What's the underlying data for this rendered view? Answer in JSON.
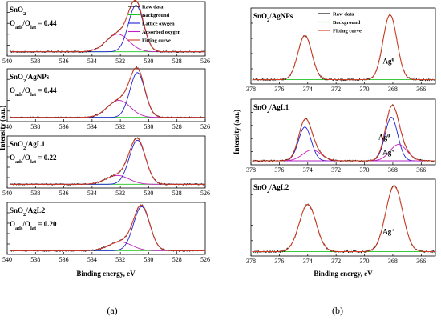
{
  "figure": {
    "caption_a": "(a)",
    "caption_b": "(b)"
  },
  "chart_data": [
    {
      "type": "line",
      "id": "a",
      "xlabel": "Binding energy, eV",
      "ylabel": "Intensity (a.u.)",
      "xlim": [
        540,
        526
      ],
      "x_ticks": [
        540,
        538,
        536,
        534,
        532,
        530,
        528,
        526
      ],
      "legend": {
        "placement": "top-right of first panel",
        "entries": [
          {
            "label": "Raw data",
            "color": "#000000"
          },
          {
            "label": "Background",
            "color": "#1fc31f"
          },
          {
            "label": "Lattice oxygen",
            "color": "#1f1fd6"
          },
          {
            "label": "Adsorbed oxygen",
            "color": "#c21fc2"
          },
          {
            "label": "Fitting curve",
            "color": "#d63a1f"
          }
        ]
      },
      "panels": [
        {
          "label": "SnO2",
          "ratio_label": "Oads/Olat = 0.44",
          "lattice": {
            "center": 530.9,
            "fwhm": 1.25,
            "height": 1.0
          },
          "adsorbed": {
            "center": 532.2,
            "fwhm": 1.9,
            "height": 0.38
          },
          "background": 0.04
        },
        {
          "label": "SnO2/AgNPs",
          "ratio_label": "Oads/Olat = 0.44",
          "lattice": {
            "center": 530.8,
            "fwhm": 1.25,
            "height": 1.0
          },
          "adsorbed": {
            "center": 532.1,
            "fwhm": 1.9,
            "height": 0.38
          },
          "background": 0.04
        },
        {
          "label": "SnO2/AgL1",
          "ratio_label": "Oads/Olat = 0.22",
          "lattice": {
            "center": 530.8,
            "fwhm": 1.35,
            "height": 1.0
          },
          "adsorbed": {
            "center": 532.2,
            "fwhm": 1.9,
            "height": 0.2
          },
          "background": 0.03
        },
        {
          "label": "SnO2/AgL2",
          "ratio_label": "Oads/Olat = 0.20",
          "lattice": {
            "center": 530.5,
            "fwhm": 1.35,
            "height": 1.0
          },
          "adsorbed": {
            "center": 532.0,
            "fwhm": 1.9,
            "height": 0.2
          },
          "background": 0.03
        }
      ]
    },
    {
      "type": "line",
      "id": "b",
      "xlabel": "Binding energy, eV",
      "ylabel": "Intensity (a.u.)",
      "xlim": [
        378,
        365
      ],
      "x_ticks": [
        378,
        376,
        374,
        372,
        370,
        368,
        366
      ],
      "legend": {
        "placement": "top of first panel",
        "entries": [
          {
            "label": "Raw data",
            "color": "#000000"
          },
          {
            "label": "Background",
            "color": "#1fc31f"
          },
          {
            "label": "Fitting curve",
            "color": "#d63a1f"
          }
        ]
      },
      "panels": [
        {
          "label": "SnO2/AgNPs",
          "peaks": [
            {
              "center": 374.2,
              "fwhm": 1.15,
              "height": 0.68
            },
            {
              "center": 368.2,
              "fwhm": 1.15,
              "height": 1.0
            }
          ],
          "components": [],
          "annotations": [
            {
              "text": "Ag",
              "sup": "0",
              "x": 368.3,
              "y": 0.28
            }
          ],
          "background": 0.03
        },
        {
          "label": "SnO2/AgL1",
          "peaks": [
            {
              "center": 374.2,
              "fwhm": 1.05,
              "height": 0.62
            },
            {
              "center": 368.1,
              "fwhm": 1.05,
              "height": 0.8
            },
            {
              "center": 373.7,
              "fwhm": 1.5,
              "height": 0.2
            },
            {
              "center": 367.6,
              "fwhm": 1.4,
              "height": 0.3
            }
          ],
          "components": [
            {
              "center": 374.2,
              "fwhm": 1.05,
              "height": 0.62,
              "color": "#1f1fd6"
            },
            {
              "center": 368.1,
              "fwhm": 1.05,
              "height": 0.8,
              "color": "#1f1fd6"
            },
            {
              "center": 373.7,
              "fwhm": 1.5,
              "height": 0.2,
              "color": "#c21fc2"
            },
            {
              "center": 367.6,
              "fwhm": 1.4,
              "height": 0.3,
              "color": "#c21fc2"
            }
          ],
          "annotations": [
            {
              "text": "Ag",
              "sup": "0",
              "x": 368.6,
              "y": 0.42
            },
            {
              "text": "Ag",
              "sup": "+",
              "x": 368.3,
              "y": 0.14
            }
          ],
          "background": 0.03
        },
        {
          "label": "SnO2/AgL2",
          "peaks": [
            {
              "center": 374.0,
              "fwhm": 1.4,
              "height": 0.72
            },
            {
              "center": 367.9,
              "fwhm": 1.4,
              "height": 1.0
            }
          ],
          "components": [],
          "annotations": [
            {
              "text": "Ag",
              "sup": "+",
              "x": 368.3,
              "y": 0.3
            }
          ],
          "background": 0.03
        }
      ]
    }
  ]
}
